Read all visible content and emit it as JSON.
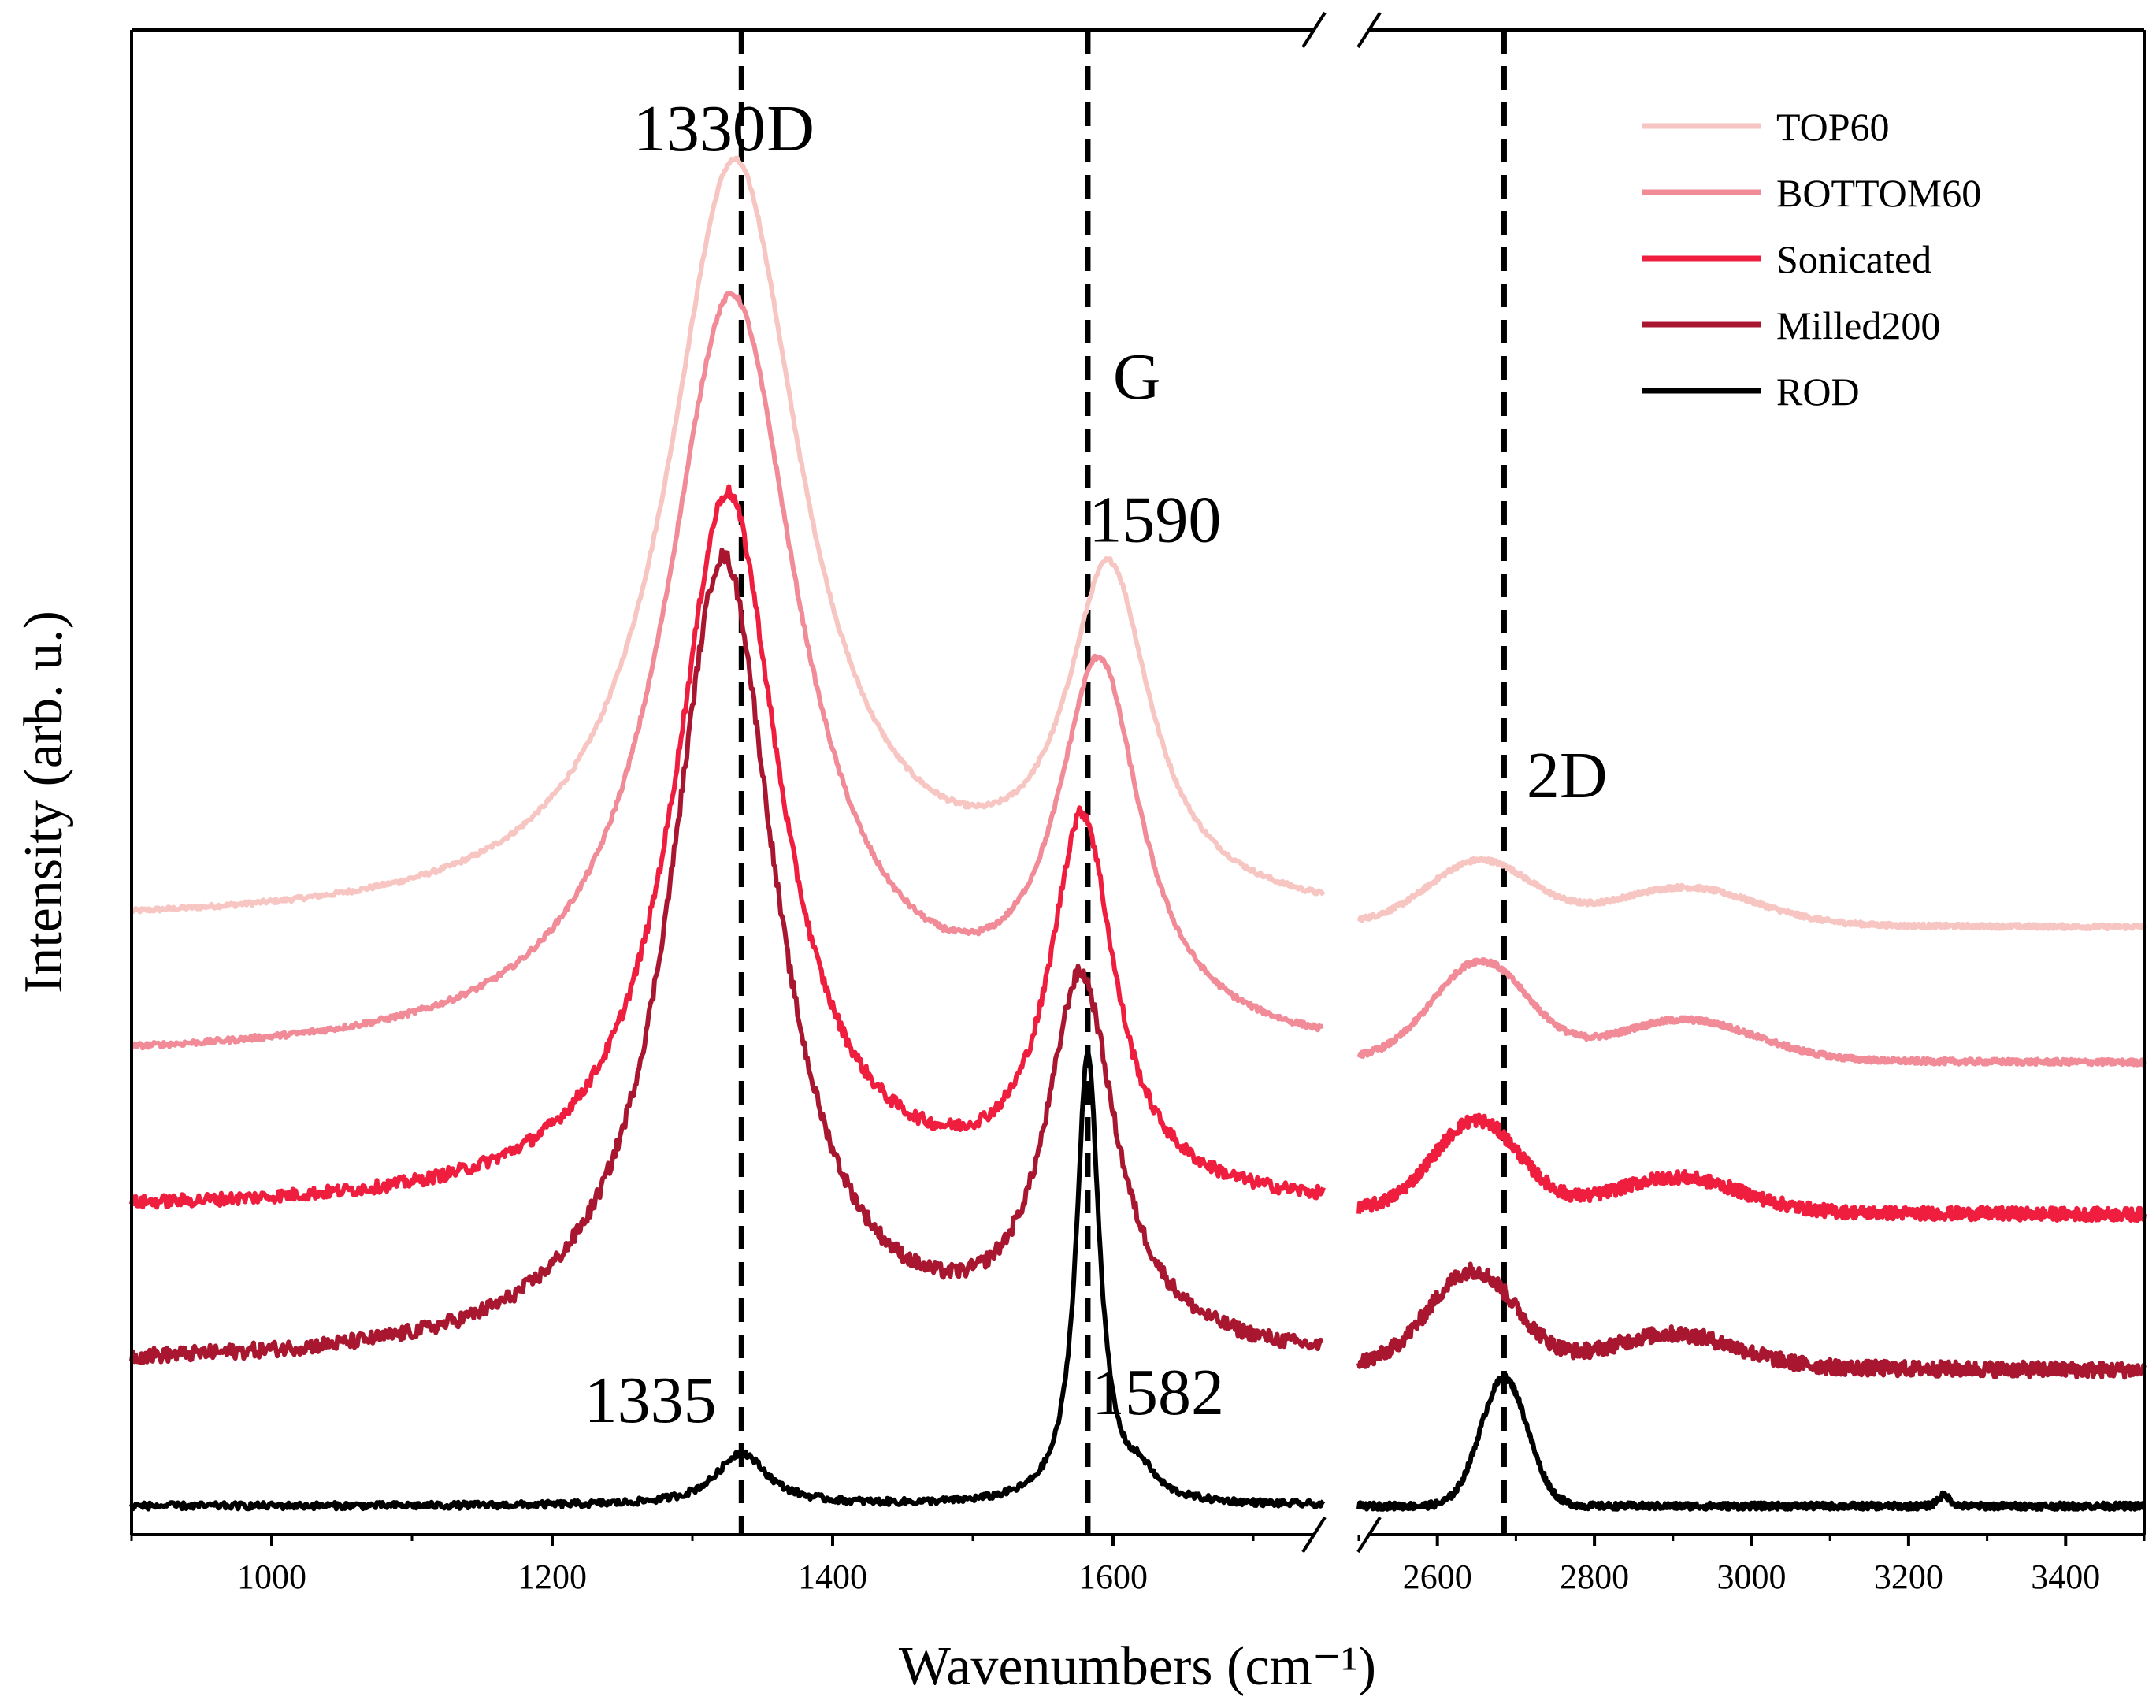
{
  "chart_data": {
    "type": "line",
    "title": "",
    "xlabel": "Wavenumbers (cm⁻¹)",
    "ylabel": "Intensity (arb. u.)",
    "y_ticks_shown": false,
    "x_axis_break": [
      1750,
      2500
    ],
    "segments": [
      {
        "xlim": [
          900,
          1750
        ],
        "ticks": [
          1000,
          1200,
          1400,
          1600
        ],
        "tick_labels": [
          "1000",
          "1200",
          "1400",
          "1600"
        ]
      },
      {
        "xlim": [
          2500,
          3500
        ],
        "ticks": [
          2600,
          2800,
          3000,
          3200,
          3400
        ],
        "tick_labels": [
          "2600",
          "2800",
          "3000",
          "3200",
          "3400"
        ]
      }
    ],
    "ylim": [
      0,
      100
    ],
    "reference_lines": [
      1335,
      1582,
      2685
    ],
    "legend_position": "top-right",
    "series": [
      {
        "name": "TOP60",
        "color": "#f7c6c2",
        "offset": 40.5,
        "peaks": [
          {
            "x": 1330,
            "height": 50.5,
            "width": 58,
            "shape": "lorentz"
          },
          {
            "x": 1597,
            "height": 22,
            "width": 36,
            "shape": "lorentz"
          },
          {
            "x": 2655,
            "height": 4.2,
            "width": 65,
            "shape": "gauss"
          },
          {
            "x": 2915,
            "height": 2.5,
            "width": 90,
            "shape": "gauss"
          }
        ],
        "tail_slope": -0.15,
        "noise": 0.15
      },
      {
        "name": "BOTTOM60",
        "color": "#f08b97",
        "offset": 31.5,
        "peaks": [
          {
            "x": 1328,
            "height": 50.5,
            "width": 58,
            "shape": "lorentz"
          },
          {
            "x": 1590,
            "height": 24.5,
            "width": 36,
            "shape": "lorentz"
          },
          {
            "x": 2655,
            "height": 6.5,
            "width": 60,
            "shape": "gauss"
          },
          {
            "x": 2915,
            "height": 2.7,
            "width": 90,
            "shape": "gauss"
          }
        ],
        "tail_slope": -0.15,
        "noise": 0.18
      },
      {
        "name": "Sonicated",
        "color": "#ef1e3f",
        "offset": 21.5,
        "peaks": [
          {
            "x": 1325,
            "height": 47.5,
            "width": 46,
            "shape": "lorentz"
          },
          {
            "x": 1578,
            "height": 25,
            "width": 28,
            "shape": "lorentz"
          },
          {
            "x": 2650,
            "height": 6,
            "width": 55,
            "shape": "gauss"
          },
          {
            "x": 2905,
            "height": 2.3,
            "width": 80,
            "shape": "gauss"
          }
        ],
        "tail_slope": -0.25,
        "noise": 0.42
      },
      {
        "name": "Milled200",
        "color": "#a8172f",
        "offset": 11.2,
        "peaks": [
          {
            "x": 1322,
            "height": 53.5,
            "width": 46,
            "shape": "lorentz"
          },
          {
            "x": 1577,
            "height": 24.5,
            "width": 30,
            "shape": "lorentz"
          },
          {
            "x": 2645,
            "height": 6.3,
            "width": 55,
            "shape": "gauss"
          },
          {
            "x": 2900,
            "height": 2.2,
            "width": 80,
            "shape": "gauss"
          }
        ],
        "tail_slope": -0.3,
        "noise": 0.5
      },
      {
        "name": "ROD",
        "color": "#000000",
        "offset": 1.9,
        "peaks": [
          {
            "x": 1335,
            "height": 3.5,
            "width": 22,
            "shape": "lorentz"
          },
          {
            "x": 1582,
            "height": 30,
            "width": 10,
            "shape": "lorentz"
          },
          {
            "x": 1620,
            "height": 1.4,
            "width": 12,
            "shape": "lorentz"
          },
          {
            "x": 2685,
            "height": 8.5,
            "width": 30,
            "shape": "gauss"
          },
          {
            "x": 3245,
            "height": 0.7,
            "width": 8,
            "shape": "gauss"
          }
        ],
        "tail_slope": 0,
        "noise": 0.22
      }
    ],
    "annotations": [
      {
        "text": "1330",
        "x": 1305,
        "y": 92
      },
      {
        "text": "D",
        "x": 1370,
        "y": 92
      },
      {
        "text": "G",
        "x": 1617,
        "y": 75.5
      },
      {
        "text": "1590",
        "x": 1630,
        "y": 66
      },
      {
        "text": "2D",
        "x": 2765,
        "y": 49
      },
      {
        "text": "1335",
        "x": 1270,
        "y": 7.5
      },
      {
        "text": "1582",
        "x": 1632,
        "y": 8
      }
    ]
  }
}
